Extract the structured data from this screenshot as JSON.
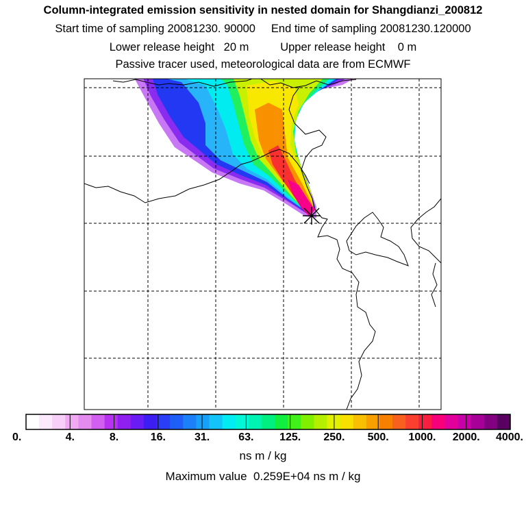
{
  "header": {
    "title": "Column-integrated emission sensitivity in nested domain for Shangdianzi_200812",
    "sampling_line": "Start time of sampling 20081230. 90000     End time of sampling 20081230.120000",
    "release_line": "Lower release height   20 m          Upper release height    0 m",
    "tracer_line": "Passive tracer used, meteorological data are from ECMWF"
  },
  "colorbar": {
    "tick_labels": [
      "0.",
      "4.",
      "8.",
      "16.",
      "31.",
      "63.",
      "125.",
      "250.",
      "500.",
      "1000.",
      "2000.",
      "4000."
    ],
    "unit_label": "ns m / kg",
    "colors": [
      "#ffffff",
      "#fde9fd",
      "#f8cff8",
      "#efaaf2",
      "#e58bef",
      "#d35ff0",
      "#b632f0",
      "#8f20f0",
      "#6a1cf5",
      "#3d1ef2",
      "#2a3ff5",
      "#1e5ff7",
      "#1c80f8",
      "#18a0f8",
      "#14c4f8",
      "#00ecf2",
      "#00f7d8",
      "#00f3b0",
      "#00ef80",
      "#10ef40",
      "#40f018",
      "#80f000",
      "#b5ef00",
      "#e0f000",
      "#f8e000",
      "#f8c000",
      "#f8a000",
      "#f88000",
      "#f86020",
      "#f83f30",
      "#f81e40",
      "#f8007a",
      "#e2009a",
      "#c800a8",
      "#a60098",
      "#820080",
      "#5a0060"
    ]
  },
  "max_value_text": "Maximum value  0.259E+04 ns m / kg",
  "map": {
    "receptor_marker": "receptor-star-icon",
    "plume_colors": {
      "violet": "#c878f5",
      "purple": "#8a2cf0",
      "blue": "#2238f2",
      "lightblue": "#28b4f8",
      "cyan": "#00ecf0",
      "green": "#20ef60",
      "yellowgreen": "#c8f000",
      "yellow": "#f8e800",
      "orange": "#f89000",
      "red": "#f83030",
      "magenta": "#f8008a"
    }
  }
}
